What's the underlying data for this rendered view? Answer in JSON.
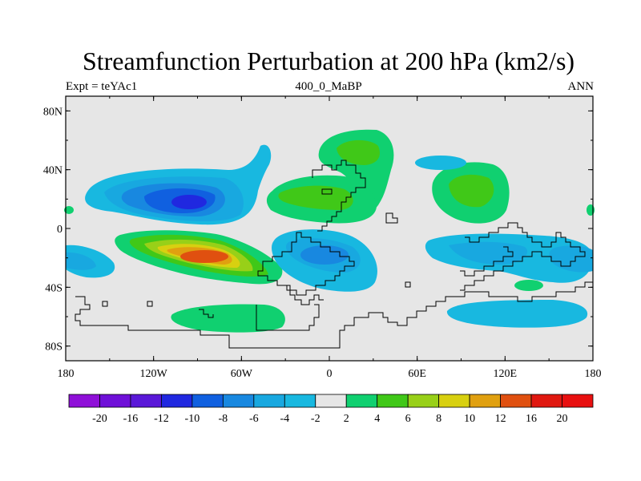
{
  "title": "Streamfunction Perturbation at 200 hPa (km2/s)",
  "subtitle_left": "Expt = teYAc1",
  "subtitle_center": "400_0_MaBP",
  "subtitle_right": "ANN",
  "y_ticks": [
    "80N",
    "40N",
    "0",
    "40S",
    "80S"
  ],
  "x_ticks": [
    "180",
    "120W",
    "60W",
    "0",
    "60E",
    "120E",
    "180"
  ],
  "colorbar": {
    "labels": [
      "-20",
      "-16",
      "-12",
      "-10",
      "-8",
      "-6",
      "-4",
      "-2",
      "2",
      "4",
      "6",
      "8",
      "10",
      "12",
      "16",
      "20"
    ],
    "colors": [
      "#8f10d8",
      "#6f10d8",
      "#5a18d8",
      "#2028e0",
      "#1060e0",
      "#1888e0",
      "#18a8e0",
      "#18b8e0",
      "#e6e6e6",
      "#10d070",
      "#40c818",
      "#98d018",
      "#d8d010",
      "#e0a010",
      "#e05010",
      "#e01810",
      "#e81010"
    ]
  },
  "map_data": {
    "extent": {
      "lon": [
        -180,
        180
      ],
      "lat": [
        -90,
        90
      ]
    },
    "features": [
      {
        "sign": "negative",
        "peak": -10,
        "center_lon": -100,
        "center_lat": 18,
        "region": "North Pacific / North America"
      },
      {
        "sign": "positive",
        "peak": 12,
        "center_lon": -85,
        "center_lat": -18,
        "region": "South East Pacific"
      },
      {
        "sign": "positive",
        "peak": 6,
        "center_lon": 25,
        "center_lat": 50,
        "region": "Eastern Europe"
      },
      {
        "sign": "positive",
        "peak": 6,
        "center_lon": -10,
        "center_lat": 25,
        "region": "North Atlantic / North Africa"
      },
      {
        "sign": "positive",
        "peak": 6,
        "center_lon": 95,
        "center_lat": 25,
        "region": "South Asia"
      },
      {
        "sign": "negative",
        "peak": -6,
        "center_lon": -20,
        "center_lat": -18,
        "region": "South Atlantic"
      },
      {
        "sign": "negative",
        "peak": -4,
        "center_lon": 110,
        "center_lat": -20,
        "region": "Indian Ocean / Australia"
      },
      {
        "sign": "negative",
        "peak": -4,
        "center_lon": -170,
        "center_lat": -20,
        "region": "South West Pacific"
      },
      {
        "sign": "negative",
        "peak": -4,
        "center_lon": 140,
        "center_lat": -55,
        "region": "Southern Ocean"
      },
      {
        "sign": "positive",
        "peak": 4,
        "center_lon": -80,
        "center_lat": -58,
        "region": "Southern Ocean"
      },
      {
        "sign": "positive",
        "peak": 4,
        "center_lon": 120,
        "center_lat": -35,
        "region": "South of Australia"
      }
    ]
  }
}
